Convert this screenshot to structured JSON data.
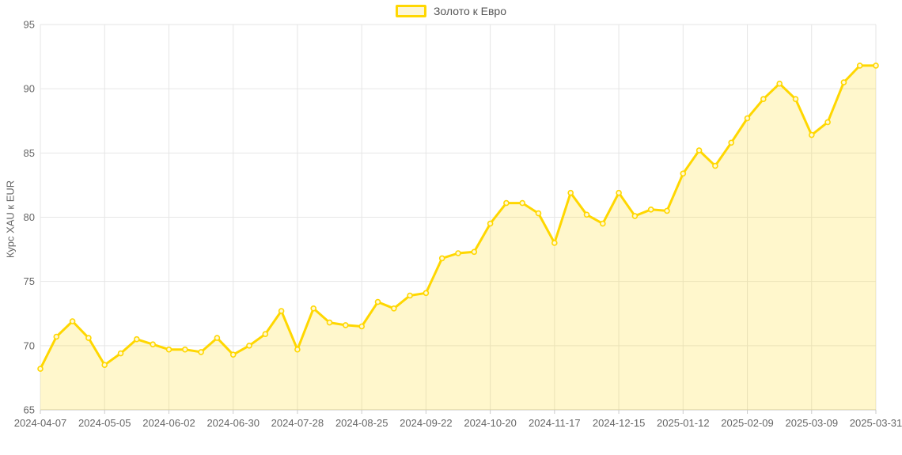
{
  "legend": {
    "label": "Золото к Евро"
  },
  "chart_data": {
    "type": "line",
    "series_name": "Золото к Евро",
    "ylabel": "Курс XAU к EUR",
    "ylim": [
      65,
      95
    ],
    "y_ticks": [
      65,
      70,
      75,
      80,
      85,
      90,
      95
    ],
    "x_tick_labels": [
      "2024-04-07",
      "2024-05-05",
      "2024-06-02",
      "2024-06-30",
      "2024-07-28",
      "2024-08-25",
      "2024-09-22",
      "2024-10-20",
      "2024-11-17",
      "2024-12-15",
      "2025-01-12",
      "2025-02-09",
      "2025-03-09",
      "2025-03-31"
    ],
    "x_tick_indices": [
      0,
      4,
      8,
      12,
      16,
      20,
      24,
      28,
      32,
      36,
      40,
      44,
      48,
      52
    ],
    "values": [
      68.2,
      70.7,
      71.9,
      70.6,
      68.5,
      69.4,
      70.5,
      70.1,
      69.7,
      69.7,
      69.5,
      70.6,
      69.3,
      70.0,
      70.9,
      72.7,
      69.7,
      72.9,
      71.8,
      71.6,
      71.5,
      73.4,
      72.9,
      73.9,
      74.1,
      76.8,
      77.2,
      77.3,
      79.5,
      81.1,
      81.1,
      80.3,
      78.0,
      81.9,
      80.2,
      79.5,
      81.9,
      80.1,
      80.6,
      80.5,
      83.4,
      85.2,
      84.0,
      85.8,
      87.7,
      89.2,
      90.4,
      89.2,
      86.4,
      87.4,
      90.5,
      91.8,
      91.8
    ],
    "grid": true,
    "legend_position": "top-center",
    "line_color": "#ffd700",
    "fill_color": "rgba(255,215,0,0.2)",
    "marker_fill_color": "#fff8d6",
    "grid_color": "#e6e6e6",
    "axis_line_color": "#cbcbcb",
    "tick_text_color": "#666666"
  }
}
